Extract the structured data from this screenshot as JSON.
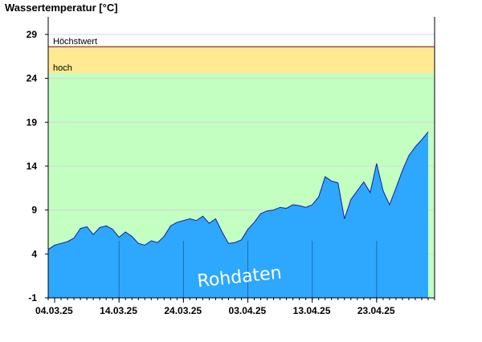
{
  "chart_data": {
    "type": "area",
    "title": "Wassertemperatur [°C]",
    "ylim": [
      -1,
      31
    ],
    "yticks": [
      -1,
      4,
      9,
      14,
      19,
      24,
      29
    ],
    "xlim": [
      "2025-03-03",
      "2025-05-02"
    ],
    "x_tick_labels": [
      "04.03.25",
      "14.03.25",
      "24.03.25",
      "03.04.25",
      "13.04.25",
      "23.04.25"
    ],
    "x_tick_dates": [
      "2025-03-04",
      "2025-03-14",
      "2025-03-24",
      "2025-04-03",
      "2025-04-13",
      "2025-04-23"
    ],
    "grid": true,
    "bands": [
      {
        "label": "hoch",
        "from": 24.6,
        "to": 27.6,
        "color": "#ffe993"
      },
      {
        "label": "",
        "from": -1,
        "to": 24.6,
        "color": "#c2ffc1"
      }
    ],
    "threshold_lines": [
      {
        "label": "Höchstwert",
        "value": 27.6,
        "color": "#7a1f2a"
      }
    ],
    "watermark": "Rohdaten",
    "series": [
      {
        "fill_color": "#2ea8ff",
        "line_color": "#1a1aa0",
        "x": [
          "2025-03-03",
          "2025-03-04",
          "2025-03-05",
          "2025-03-06",
          "2025-03-07",
          "2025-03-08",
          "2025-03-09",
          "2025-03-10",
          "2025-03-11",
          "2025-03-12",
          "2025-03-13",
          "2025-03-14",
          "2025-03-15",
          "2025-03-16",
          "2025-03-17",
          "2025-03-18",
          "2025-03-19",
          "2025-03-20",
          "2025-03-21",
          "2025-03-22",
          "2025-03-23",
          "2025-03-24",
          "2025-03-25",
          "2025-03-26",
          "2025-03-27",
          "2025-03-28",
          "2025-03-29",
          "2025-03-30",
          "2025-03-31",
          "2025-04-01",
          "2025-04-02",
          "2025-04-03",
          "2025-04-04",
          "2025-04-05",
          "2025-04-06",
          "2025-04-07",
          "2025-04-08",
          "2025-04-09",
          "2025-04-10",
          "2025-04-11",
          "2025-04-12",
          "2025-04-13",
          "2025-04-14",
          "2025-04-15",
          "2025-04-16",
          "2025-04-17",
          "2025-04-18",
          "2025-04-19",
          "2025-04-20",
          "2025-04-21",
          "2025-04-22",
          "2025-04-23",
          "2025-04-24",
          "2025-04-25",
          "2025-04-26",
          "2025-04-27",
          "2025-04-28",
          "2025-04-29",
          "2025-04-30",
          "2025-05-01"
        ],
        "values": [
          4.5,
          5.0,
          5.2,
          5.4,
          5.8,
          6.9,
          7.1,
          6.2,
          7.0,
          7.2,
          6.8,
          5.9,
          6.5,
          6.0,
          5.2,
          5.0,
          5.5,
          5.3,
          6.0,
          7.2,
          7.6,
          7.8,
          8.0,
          7.8,
          8.3,
          7.5,
          8.0,
          6.5,
          5.2,
          5.3,
          5.6,
          6.8,
          7.6,
          8.6,
          8.9,
          9.0,
          9.3,
          9.2,
          9.6,
          9.5,
          9.3,
          9.6,
          10.5,
          12.8,
          12.3,
          12.1,
          8.0,
          10.2,
          11.2,
          12.2,
          11.0,
          14.3,
          11.2,
          9.6,
          11.5,
          13.5,
          15.2,
          16.2,
          17.0,
          17.9
        ]
      }
    ]
  }
}
